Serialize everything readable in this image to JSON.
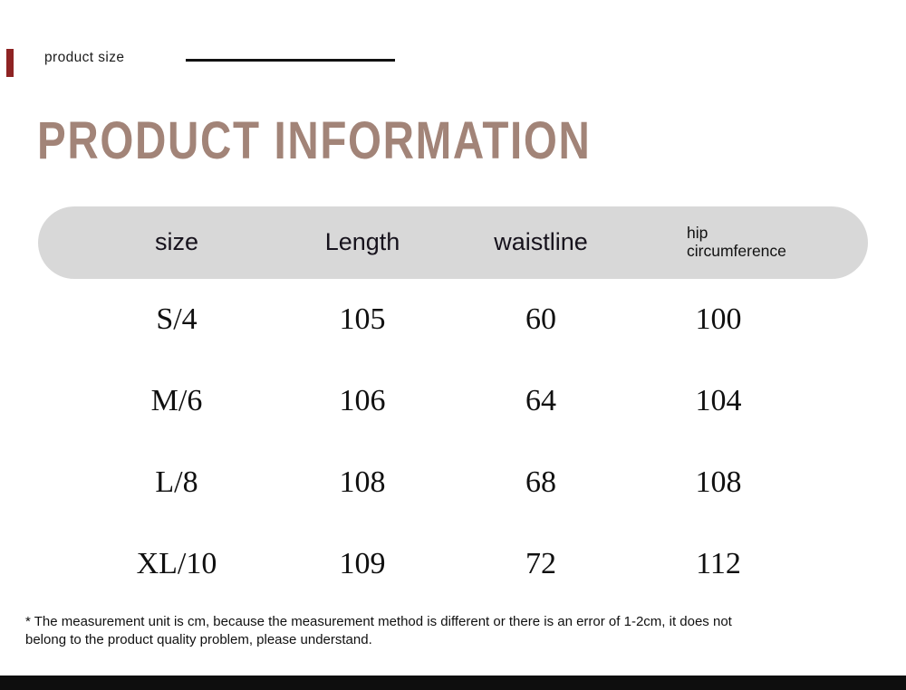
{
  "topbar": {
    "label": "product size"
  },
  "heading": {
    "title": "PRODUCT INFORMATION",
    "color": "#a28478"
  },
  "size_table": {
    "header_bar_color": "#d8d8d8",
    "headers": [
      "size",
      "Length",
      "waistline",
      "hip circumference"
    ],
    "rows": [
      [
        "S/4",
        "105",
        "60",
        "100"
      ],
      [
        "M/6",
        "106",
        "64",
        "104"
      ],
      [
        "L/8",
        "108",
        "68",
        "108"
      ],
      [
        "XL/10",
        "109",
        "72",
        "112"
      ]
    ]
  },
  "footnote": {
    "text": "* The measurement unit is cm, because the measurement method is different or there is an error of 1-2cm, it does not belong to the product quality problem, please understand."
  },
  "decor": {
    "accent_bar_color": "#8e2323",
    "bottom_bar_color": "#0e0e0e"
  },
  "chart_data": {
    "type": "table",
    "title": "PRODUCT INFORMATION",
    "columns": [
      "size",
      "Length",
      "waistline",
      "hip circumference"
    ],
    "rows": [
      {
        "size": "S/4",
        "length": 105,
        "waistline": 60,
        "hip_circumference": 100
      },
      {
        "size": "M/6",
        "length": 106,
        "waistline": 64,
        "hip_circumference": 104
      },
      {
        "size": "L/8",
        "length": 108,
        "waistline": 68,
        "hip_circumference": 108
      },
      {
        "size": "XL/10",
        "length": 109,
        "waistline": 72,
        "hip_circumference": 112
      }
    ],
    "unit": "cm",
    "note": "* The measurement unit is cm, because the measurement method is different or there is an error of 1-2cm, it does not belong to the product quality problem, please understand."
  }
}
